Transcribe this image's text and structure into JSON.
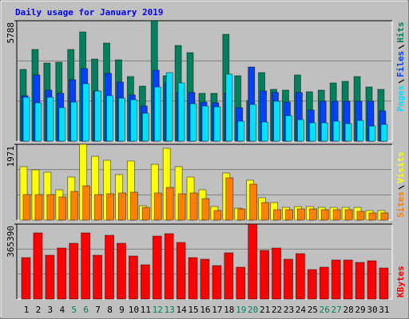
{
  "chart_data": {
    "type": "bar",
    "title": "Daily usage for January 2019",
    "categories": [
      "1",
      "2",
      "3",
      "4",
      "5",
      "6",
      "7",
      "8",
      "9",
      "10",
      "11",
      "12",
      "13",
      "14",
      "15",
      "16",
      "17",
      "18",
      "19",
      "20",
      "21",
      "22",
      "23",
      "24",
      "25",
      "26",
      "27",
      "28",
      "29",
      "30",
      "31"
    ],
    "label_colors": [
      "#000000",
      "#000000",
      "#000000",
      "#000000",
      "#00805c",
      "#00805c",
      "#000000",
      "#000000",
      "#000000",
      "#000000",
      "#000000",
      "#00805c",
      "#00805c",
      "#000000",
      "#000000",
      "#000000",
      "#000000",
      "#000000",
      "#00805c",
      "#00805c",
      "#000000",
      "#000000",
      "#000000",
      "#000000",
      "#000000",
      "#00805c",
      "#00805c",
      "#000000",
      "#000000",
      "#000000",
      "#000000"
    ],
    "panels": [
      {
        "ylim": [
          0,
          5788
        ],
        "yticks": [
          5788
        ],
        "series": [
          {
            "name": "Hits",
            "color": "#00805c",
            "values": [
              3450,
              4408,
              3756,
              3795,
              4408,
              5251,
              3948,
              4715,
              3910,
              3105,
              2645,
              5788,
              3143,
              4600,
              4255,
              2300,
              2300,
              5136,
              3143,
              1955,
              3296,
              2491,
              2453,
              3181,
              2376,
              2453,
              2798,
              2875,
              3105,
              2606,
              2491
            ]
          },
          {
            "name": "Files",
            "color": "#0040ff",
            "values": [
              2185,
              3181,
              2453,
              2300,
              2951,
              3488,
              2415,
              3258,
              2836,
              2223,
              1687,
              3411,
              2836,
              2338,
              2338,
              1878,
              1840,
              2300,
              1610,
              3565,
              2415,
              2338,
              1878,
              2338,
              1495,
              1917,
              1917,
              1917,
              1917,
              1917,
              1457
            ]
          },
          {
            "name": "Pages",
            "color": "#00e0ff",
            "values": [
              2108,
              1840,
              2108,
              1610,
              1878,
              2760,
              2415,
              2185,
              2070,
              1993,
              1342,
              2606,
              3296,
              2798,
              1802,
              1687,
              1648,
              3220,
              958,
              1763,
              920,
              1917,
              1227,
              1035,
              882,
              882,
              958,
              843,
              997,
              728,
              805
            ]
          }
        ]
      },
      {
        "ylim": [
          0,
          1971
        ],
        "yticks": [
          1971
        ],
        "series": [
          {
            "name": "Visits",
            "color": "#ffff00",
            "values": [
              1390,
              1307,
              1245,
              789,
              1121,
              1971,
              1660,
              1556,
              1183,
              1536,
              374,
              1453,
              1868,
              1390,
              1121,
              789,
              353,
              1224,
              311,
              1038,
              581,
              457,
              332,
              353,
              353,
              332,
              332,
              332,
              332,
              249,
              249
            ]
          },
          {
            "name": "Sites",
            "color": "#ff8000",
            "values": [
              664,
              664,
              664,
              602,
              747,
              892,
              664,
              685,
              706,
              726,
              332,
              706,
              851,
              685,
              706,
              560,
              249,
              1100,
              291,
              934,
              457,
              270,
              270,
              291,
              291,
              270,
              270,
              270,
              228,
              187,
              187
            ]
          }
        ]
      },
      {
        "ylim": [
          0,
          365390
        ],
        "yticks": [
          365390
        ],
        "series": [
          {
            "name": "KBytes",
            "color": "#ff0000",
            "values": [
              202124,
              322621,
              213785,
              248768,
              272090,
              322621,
              213785,
              310960,
              272090,
              209898,
              167141,
              307073,
              318734,
              275977,
              202124,
              194350,
              163254,
              225446,
              155480,
              365390,
              237107,
              248768,
              194350,
              221559,
              143819,
              155480,
              190463,
              190463,
              178802,
              186576,
              151593
            ]
          }
        ]
      }
    ]
  }
}
